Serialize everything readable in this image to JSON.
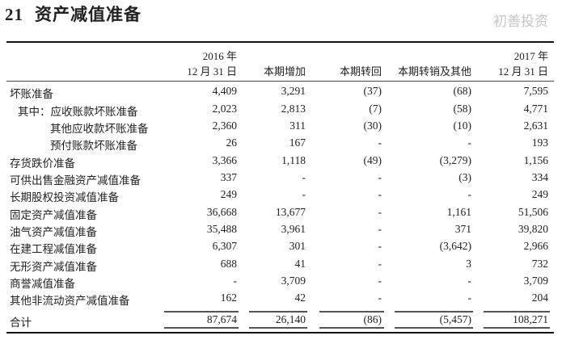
{
  "title": {
    "number": "21",
    "text": "资产减值准备"
  },
  "headers": [
    [
      "2016 年",
      "12 月 31 日"
    ],
    [
      "",
      "本期增加"
    ],
    [
      "",
      "本期转回"
    ],
    [
      "",
      "本期转销及其他"
    ],
    [
      "2017 年",
      "12 月 31 日"
    ]
  ],
  "rows": [
    {
      "label": "坏账准备",
      "values": [
        "4,409",
        "3,291",
        "(37)",
        "(68)",
        "7,595"
      ]
    },
    {
      "label": "其中：应收账款坏账准备",
      "values": [
        "2,023",
        "2,813",
        "(7)",
        "(58)",
        "4,771"
      ]
    },
    {
      "label": "其他应收款坏账准备",
      "values": [
        "2,360",
        "311",
        "(30)",
        "(10)",
        "2,631"
      ]
    },
    {
      "label": "预付账款坏账准备",
      "values": [
        "26",
        "167",
        "-",
        "-",
        "193"
      ]
    },
    {
      "label": "存货跌价准备",
      "values": [
        "3,366",
        "1,118",
        "(49)",
        "(3,279)",
        "1,156"
      ]
    },
    {
      "label": "可供出售金融资产减值准备",
      "values": [
        "337",
        "-",
        "-",
        "(3)",
        "334"
      ]
    },
    {
      "label": "长期股权投资减值准备",
      "values": [
        "249",
        "-",
        "-",
        "-",
        "249"
      ]
    },
    {
      "label": "固定资产减值准备",
      "values": [
        "36,668",
        "13,677",
        "-",
        "1,161",
        "51,506"
      ]
    },
    {
      "label": "油气资产减值准备",
      "values": [
        "35,488",
        "3,961",
        "-",
        "371",
        "39,820"
      ]
    },
    {
      "label": "在建工程减值准备",
      "values": [
        "6,307",
        "301",
        "-",
        "(3,642)",
        "2,966"
      ]
    },
    {
      "label": "无形资产减值准备",
      "values": [
        "688",
        "41",
        "-",
        "3",
        "732"
      ]
    },
    {
      "label": "商誉减值准备",
      "values": [
        "-",
        "3,709",
        "-",
        "-",
        "3,709"
      ]
    },
    {
      "label": "其他非流动资产减值准备",
      "values": [
        "162",
        "42",
        "-",
        "-",
        "204"
      ]
    }
  ],
  "total": {
    "label": "合计",
    "values": [
      "87,674",
      "26,140",
      "(86)",
      "(5,457)",
      "108,271"
    ]
  },
  "watermark": "初善投资"
}
